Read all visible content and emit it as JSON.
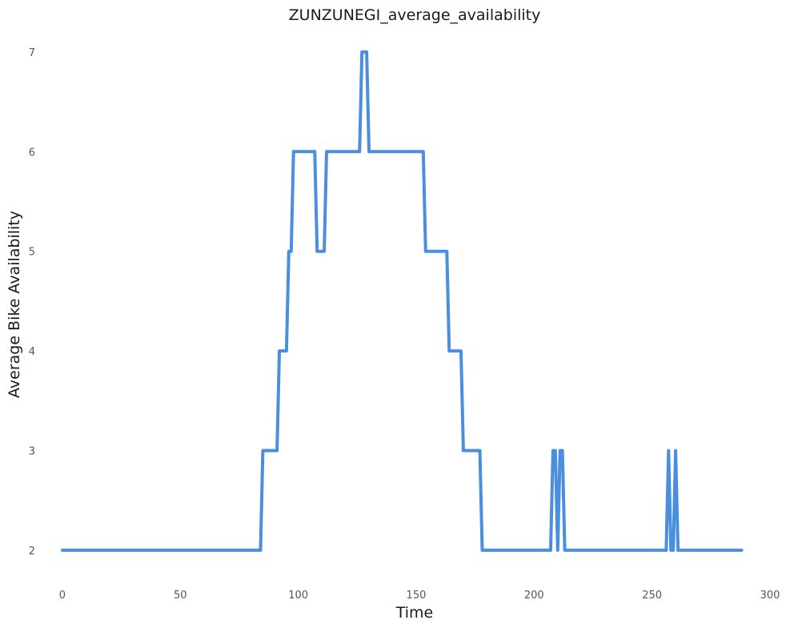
{
  "chart_data": {
    "type": "line",
    "title": "ZUNZUNEGI_average_availability",
    "xlabel": "Time",
    "ylabel": "Average Bike Availability",
    "xlim": [
      -1,
      300
    ],
    "ylim": [
      1.75,
      7.2
    ],
    "x_ticks": [
      0,
      50,
      100,
      150,
      200,
      250,
      300
    ],
    "y_ticks": [
      2,
      3,
      4,
      5,
      6,
      7
    ],
    "grid": false,
    "color": "#4a8ee0",
    "series": [
      {
        "points": [
          [
            0,
            2
          ],
          [
            84,
            2
          ],
          [
            85,
            3
          ],
          [
            91,
            3
          ],
          [
            92,
            4
          ],
          [
            95,
            4
          ],
          [
            96,
            5
          ],
          [
            97,
            5
          ],
          [
            98,
            6
          ],
          [
            107,
            6
          ],
          [
            108,
            5
          ],
          [
            111,
            5
          ],
          [
            112,
            6
          ],
          [
            126,
            6
          ],
          [
            127,
            7
          ],
          [
            129,
            7
          ],
          [
            130,
            6
          ],
          [
            153,
            6
          ],
          [
            154,
            5
          ],
          [
            163,
            5
          ],
          [
            164,
            4
          ],
          [
            169,
            4
          ],
          [
            170,
            3
          ],
          [
            177,
            3
          ],
          [
            178,
            2
          ],
          [
            207,
            2
          ],
          [
            208,
            3
          ],
          [
            209,
            3
          ],
          [
            210,
            2
          ],
          [
            211,
            3
          ],
          [
            212,
            3
          ],
          [
            213,
            2
          ],
          [
            256,
            2
          ],
          [
            257,
            3
          ],
          [
            258,
            2
          ],
          [
            259,
            2
          ],
          [
            260,
            3
          ],
          [
            261,
            2
          ],
          [
            288,
            2
          ]
        ]
      }
    ]
  }
}
